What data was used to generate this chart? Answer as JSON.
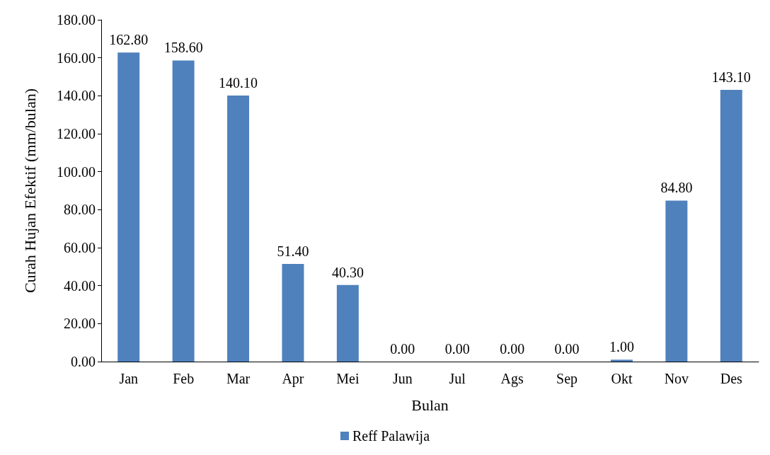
{
  "chart_data": {
    "type": "bar",
    "xlabel": "Bulan",
    "ylabel": "Curah Hujan Efektif (mm/bulan)",
    "categories": [
      "Jan",
      "Feb",
      "Mar",
      "Apr",
      "Mei",
      "Jun",
      "Jul",
      "Ags",
      "Sep",
      "Okt",
      "Nov",
      "Des"
    ],
    "series": [
      {
        "name": "Reff Palawija",
        "color": "#4f81bd",
        "values": [
          162.8,
          158.6,
          140.1,
          51.4,
          40.3,
          0,
          0,
          0,
          0,
          1,
          84.8,
          143.1
        ],
        "value_labels": [
          "162.80",
          "158.60",
          "140.10",
          "51.40",
          "40.30",
          "0.00",
          "0.00",
          "0.00",
          "0.00",
          "1.00",
          "84.80",
          "143.10"
        ]
      }
    ],
    "ylim": [
      0,
      180
    ],
    "yticks": [
      {
        "value": 0,
        "label": "0.00"
      },
      {
        "value": 20,
        "label": "20.00"
      },
      {
        "value": 40,
        "label": "40.00"
      },
      {
        "value": 60,
        "label": "60.00"
      },
      {
        "value": 80,
        "label": "80.00"
      },
      {
        "value": 100,
        "label": "100.00"
      },
      {
        "value": 120,
        "label": "120.00"
      },
      {
        "value": 140,
        "label": "140.00"
      },
      {
        "value": 160,
        "label": "160.00"
      },
      {
        "value": 180,
        "label": "180.00"
      }
    ],
    "grid": false,
    "legend": "bottom"
  }
}
